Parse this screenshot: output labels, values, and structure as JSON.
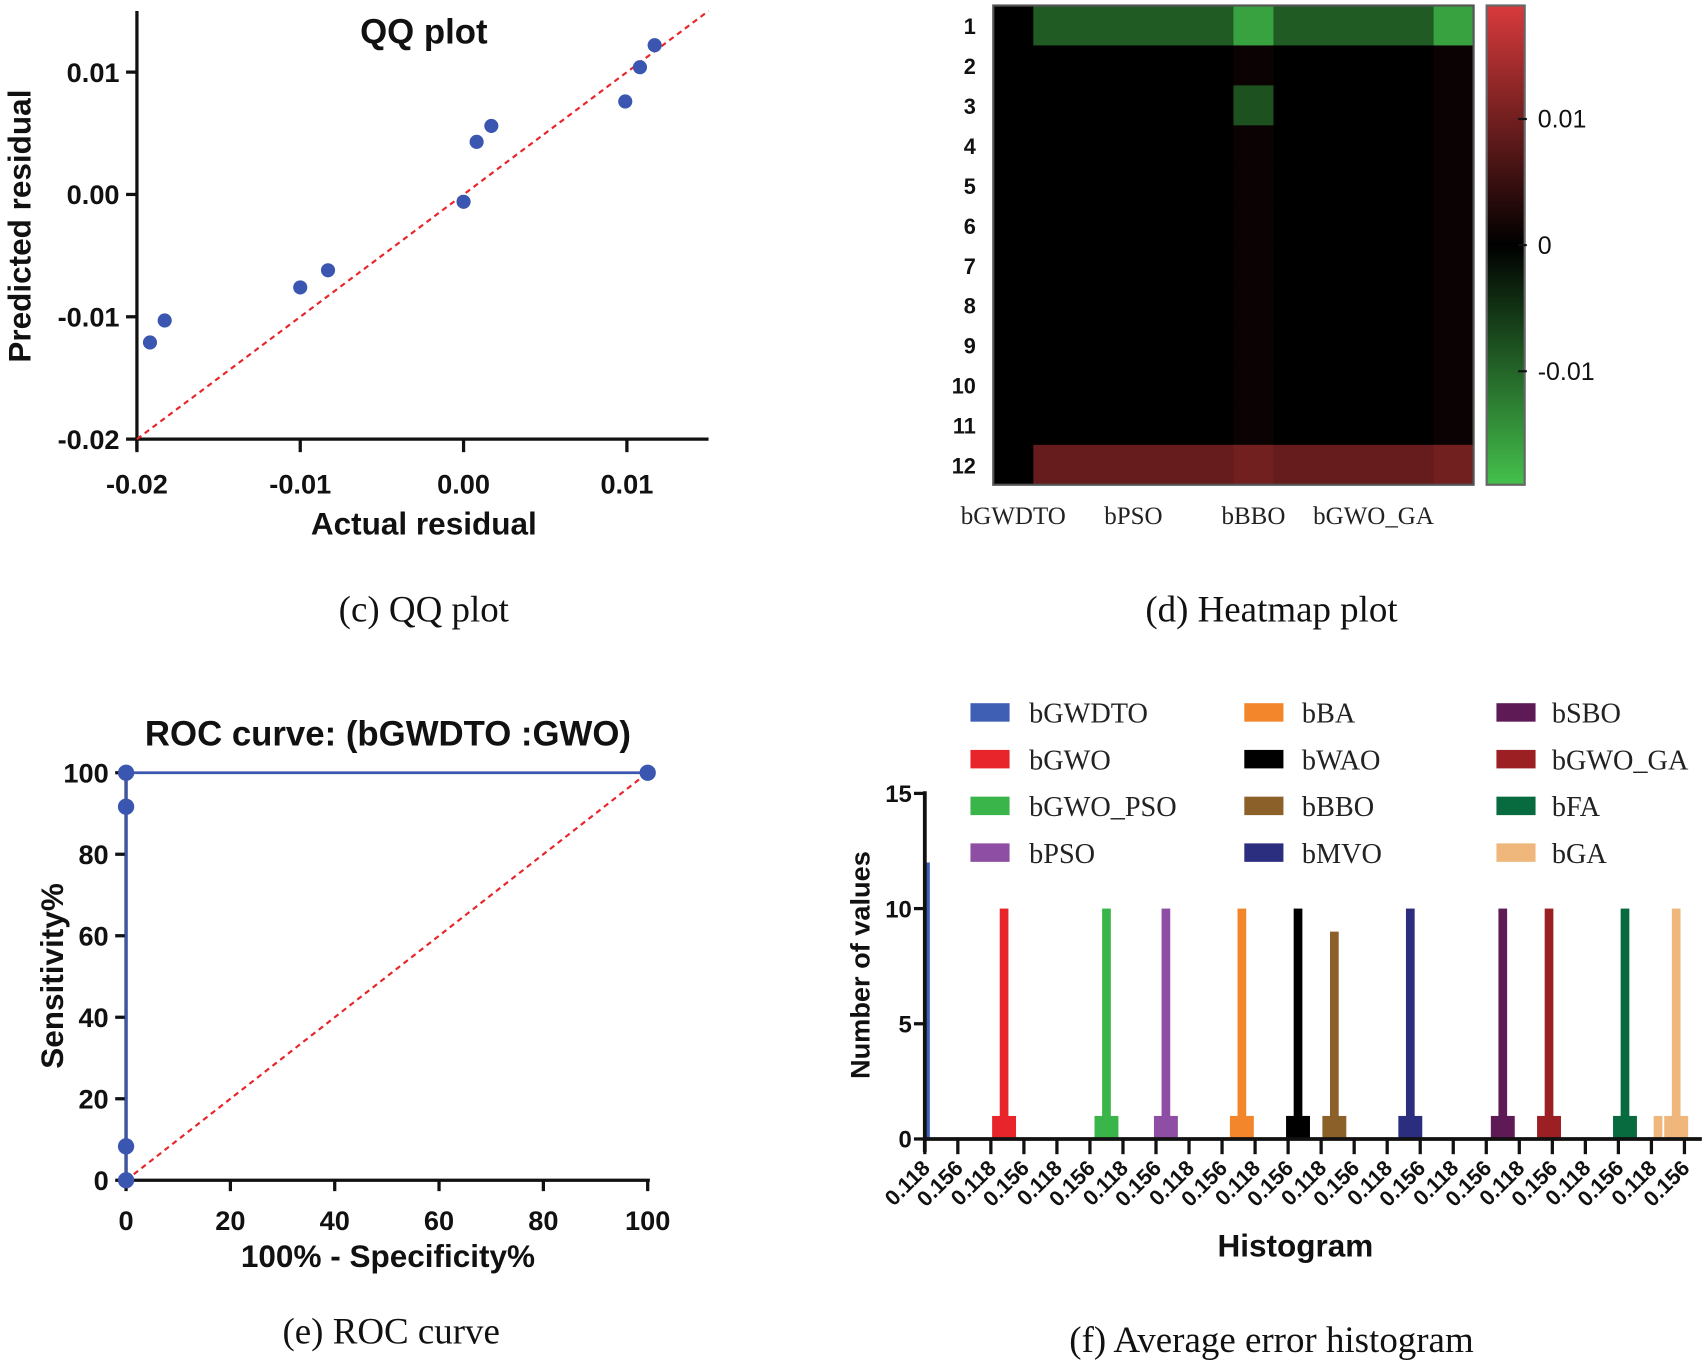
{
  "chart_data": [
    {
      "type": "scatter",
      "title": "QQ plot",
      "caption": "(c) QQ plot",
      "xlabel": "Actual residual",
      "ylabel": "Predicted residual",
      "xlim": [
        -0.02,
        0.015
      ],
      "ylim": [
        -0.02,
        0.015
      ],
      "xticks": [
        "-0.02",
        "-0.01",
        "0.00",
        "0.01"
      ],
      "yticks": [
        "-0.02",
        "-0.01",
        "0.00",
        "0.01"
      ],
      "point_color": "#3a56b0",
      "reference_line_color": "#e8252b",
      "points": [
        {
          "x": -0.0192,
          "y": -0.0121
        },
        {
          "x": -0.0183,
          "y": -0.0103
        },
        {
          "x": -0.01,
          "y": -0.0076
        },
        {
          "x": -0.0083,
          "y": -0.0062
        },
        {
          "x": 0.0,
          "y": -0.0006
        },
        {
          "x": 0.0008,
          "y": 0.0043
        },
        {
          "x": 0.0017,
          "y": 0.0056
        },
        {
          "x": 0.0099,
          "y": 0.0076
        },
        {
          "x": 0.0108,
          "y": 0.0104
        },
        {
          "x": 0.0117,
          "y": 0.0122
        }
      ]
    },
    {
      "type": "heatmap",
      "caption": "(d) Heatmap plot",
      "rows": [
        "1",
        "2",
        "3",
        "4",
        "5",
        "6",
        "7",
        "8",
        "9",
        "10",
        "11",
        "12"
      ],
      "column_labels": [
        "bGWDTO",
        "",
        "",
        "bPSO",
        "",
        "",
        "bBBO",
        "",
        "",
        "bGWO_GA",
        "",
        ""
      ],
      "colorbar_ticks": [
        "0.01",
        "0",
        "-0.01"
      ],
      "colorbar_range": [
        -0.019,
        0.019
      ],
      "colors": {
        "negative": "#44c04c",
        "zero": "#000000",
        "positive": "#d83a3c"
      },
      "values": [
        [
          0,
          -0.009,
          -0.009,
          -0.009,
          -0.009,
          -0.009,
          -0.016,
          -0.009,
          -0.009,
          -0.009,
          -0.009,
          -0.016
        ],
        [
          0,
          0,
          0,
          0,
          0,
          0,
          0.001,
          0,
          0,
          0,
          0,
          0.001
        ],
        [
          0,
          0,
          0,
          0,
          0,
          0,
          -0.008,
          0,
          0,
          0,
          0,
          0.001
        ],
        [
          0,
          0,
          0,
          0,
          0,
          0,
          0.001,
          0,
          0,
          0,
          0,
          0.001
        ],
        [
          0,
          0,
          0,
          0,
          0,
          0,
          0.001,
          0,
          0,
          0,
          0,
          0.001
        ],
        [
          0,
          0,
          0,
          0,
          0,
          0,
          0.001,
          0,
          0,
          0,
          0,
          0.001
        ],
        [
          0,
          0,
          0,
          0,
          0,
          0,
          0.001,
          0,
          0,
          0,
          0,
          0.001
        ],
        [
          0,
          0,
          0,
          0,
          0,
          0,
          0.001,
          0,
          0,
          0,
          0,
          0.001
        ],
        [
          0,
          0,
          0,
          0,
          0,
          0,
          0.001,
          0,
          0,
          0,
          0,
          0.001
        ],
        [
          0,
          0,
          0,
          0,
          0,
          0,
          0.001,
          0,
          0,
          0,
          0,
          0.001
        ],
        [
          0,
          0,
          0,
          0,
          0,
          0,
          0.001,
          0,
          0,
          0,
          0,
          0.001
        ],
        [
          0,
          0.009,
          0.009,
          0.009,
          0.009,
          0.009,
          0.01,
          0.009,
          0.009,
          0.009,
          0.009,
          0.01
        ]
      ]
    },
    {
      "type": "line",
      "title": "ROC curve: (bGWDTO :GWO)",
      "caption": "(e) ROC curve",
      "xlabel": "100% - Specificity%",
      "ylabel": "Sensitivity%",
      "xlim": [
        0,
        100
      ],
      "ylim": [
        0,
        100
      ],
      "xticks": [
        "0",
        "20",
        "40",
        "60",
        "80",
        "100"
      ],
      "yticks": [
        "0",
        "20",
        "40",
        "60",
        "80",
        "100"
      ],
      "line_color": "#3a56b0",
      "reference_line_color": "#e8252b",
      "points": [
        {
          "x": 0,
          "y": 0
        },
        {
          "x": 0,
          "y": 8.33
        },
        {
          "x": 0,
          "y": 91.67
        },
        {
          "x": 0,
          "y": 100
        },
        {
          "x": 100,
          "y": 100
        }
      ]
    },
    {
      "type": "bar",
      "caption": "(f) Average error histogram",
      "xlabel": "Histogram",
      "ylabel": "Number of values",
      "ylim": [
        0,
        15
      ],
      "yticks": [
        "0",
        "5",
        "10",
        "15"
      ],
      "xticks": [
        "0.118",
        "0.156",
        "0.118",
        "0.156",
        "0.118",
        "0.156",
        "0.118",
        "0.156",
        "0.118",
        "0.156",
        "0.118",
        "0.156",
        "0.118",
        "0.156",
        "0.118",
        "0.156",
        "0.118",
        "0.156",
        "0.118",
        "0.156",
        "0.118",
        "0.156",
        "0.118",
        "0.156"
      ],
      "legend_position": "top",
      "series": [
        {
          "name": "bGWDTO",
          "color": "#3f5fb5",
          "bin": 0.07,
          "peak": 12,
          "base": 0
        },
        {
          "name": "bGWO",
          "color": "#e8252b",
          "bin": 2.4,
          "peak": 10,
          "base": 1
        },
        {
          "name": "bGWO_PSO",
          "color": "#3ab54a",
          "bin": 5.5,
          "peak": 10,
          "base": 1
        },
        {
          "name": "bPSO",
          "color": "#8e4ea3",
          "bin": 7.3,
          "peak": 10,
          "base": 1
        },
        {
          "name": "bBA",
          "color": "#f3862a",
          "bin": 9.6,
          "peak": 10,
          "base": 1
        },
        {
          "name": "bWAO",
          "color": "#000000",
          "bin": 11.3,
          "peak": 10,
          "base": 1
        },
        {
          "name": "bBBO",
          "color": "#8b6129",
          "bin": 12.4,
          "peak": 9,
          "base": 1
        },
        {
          "name": "bMVO",
          "color": "#2b2d7e",
          "bin": 14.7,
          "peak": 10,
          "base": 1
        },
        {
          "name": "bSBO",
          "color": "#5e1a55",
          "bin": 17.5,
          "peak": 10,
          "base": 1
        },
        {
          "name": "bGWO_GA",
          "color": "#9c1f23",
          "bin": 18.9,
          "peak": 10,
          "base": 1
        },
        {
          "name": "bFA",
          "color": "#086b3f",
          "bin": 21.2,
          "peak": 10,
          "base": 1
        },
        {
          "name": "bGA",
          "color": "#efb77c",
          "bin": 22.75,
          "peak": 10,
          "base": 1,
          "extra_bin": 22.2,
          "extra": 1
        }
      ]
    }
  ]
}
